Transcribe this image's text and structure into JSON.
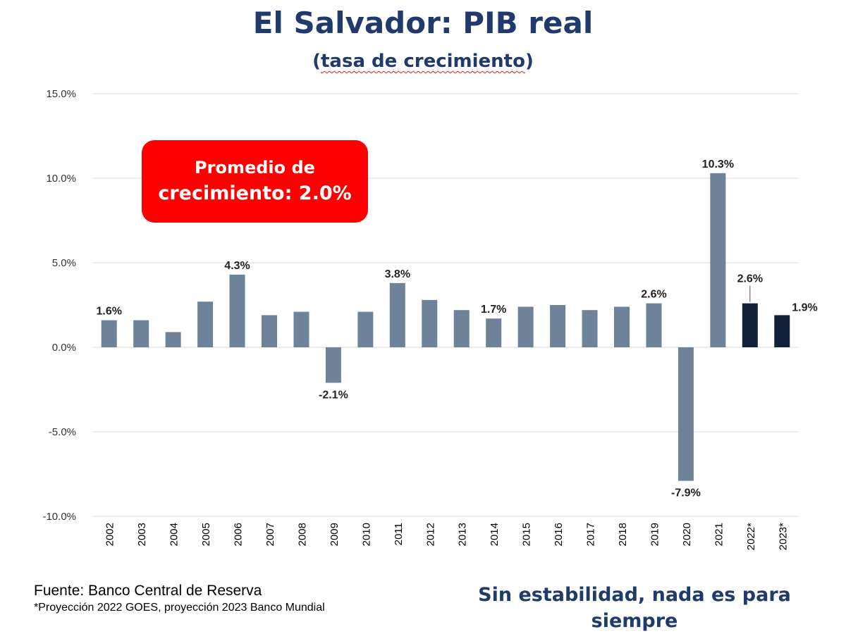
{
  "title": "El Salvador: PIB real",
  "subtitle": {
    "open": "(",
    "text": "tasa de crecimiento",
    "close": ")"
  },
  "callout": {
    "line1": "Promedio de",
    "line2": "crecimiento: 2.0%"
  },
  "source": {
    "line1": "Fuente: Banco Central de Reserva",
    "line2": "*Proyección 2022 GOES, proyección 2023 Banco Mundial"
  },
  "slogan": {
    "line1": "Sin estabilidad, nada es para",
    "line2": "siempre"
  },
  "colors": {
    "historical": "#6e8299",
    "projection": "#12213a",
    "grid": "#d9d9d9",
    "title": "#1f3a6b",
    "callout": "#ff0000"
  },
  "chart_data": {
    "type": "bar",
    "title": "El Salvador: PIB real",
    "subtitle": "(tasa de crecimiento)",
    "xlabel": "",
    "ylabel": "",
    "ylim": [
      -10,
      15
    ],
    "yticks": [
      15,
      10,
      5,
      0,
      -5,
      -10
    ],
    "ytick_labels": [
      "15.0%",
      "10.0%",
      "5.0%",
      "0.0%",
      "-5.0%",
      "-10.0%"
    ],
    "grid": true,
    "categories": [
      "2002",
      "2003",
      "2004",
      "2005",
      "2006",
      "2007",
      "2008",
      "2009",
      "2010",
      "2011",
      "2012",
      "2013",
      "2014",
      "2015",
      "2016",
      "2017",
      "2018",
      "2019",
      "2020",
      "2021",
      "2022*",
      "2023*"
    ],
    "values": [
      1.6,
      1.6,
      0.9,
      2.7,
      4.3,
      1.9,
      2.1,
      -2.1,
      2.1,
      3.8,
      2.8,
      2.2,
      1.7,
      2.4,
      2.5,
      2.2,
      2.4,
      2.6,
      -7.9,
      10.3,
      2.6,
      1.9
    ],
    "projection": [
      false,
      false,
      false,
      false,
      false,
      false,
      false,
      false,
      false,
      false,
      false,
      false,
      false,
      false,
      false,
      false,
      false,
      false,
      false,
      false,
      true,
      true
    ],
    "data_labels": [
      "1.6%",
      "",
      "",
      "",
      "4.3%",
      "",
      "",
      "-2.1%",
      "",
      "3.8%",
      "",
      "",
      "1.7%",
      "",
      "",
      "",
      "",
      "2.6%",
      "-7.9%",
      "10.3%",
      "2.6%",
      "1.9%"
    ]
  }
}
